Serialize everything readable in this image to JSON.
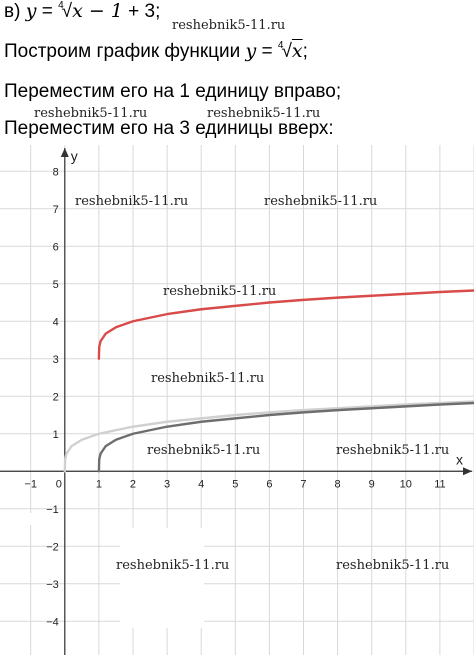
{
  "text": {
    "line1_prefix": "в) ",
    "line1_y": "y",
    "line1_eq": " = ",
    "line1_root_index": "4",
    "line1_radical": "√",
    "line1_radicand": "x − 1",
    "line1_suffix": " + 3;",
    "line2_text": "Построим график функции ",
    "line2_y": "y",
    "line2_eq": " = ",
    "line2_root_index": "4",
    "line2_radical": "√",
    "line2_radicand": "x",
    "line2_end": ";",
    "line3": "Переместим его на 1 единицу вправо;",
    "line4": "Переместим его на 3 единицы вверх:"
  },
  "watermark": "reshebnik5-11.ru",
  "chart_data": {
    "type": "line",
    "xlabel": "x",
    "ylabel": "y",
    "xlim": [
      -1.9,
      12.0
    ],
    "ylim": [
      -4.9,
      8.7
    ],
    "grid": true,
    "x_ticks": [
      "−1",
      "0",
      "1",
      "2",
      "3",
      "4",
      "5",
      "6",
      "7",
      "8",
      "9",
      "10",
      "11"
    ],
    "y_ticks": [
      "−4",
      "−3",
      "−2",
      "−1",
      "1",
      "2",
      "3",
      "4",
      "5",
      "6",
      "7",
      "8"
    ],
    "series": [
      {
        "color": "#d0d0d0",
        "x": [
          0,
          0.01,
          0.05,
          0.2,
          0.5,
          1,
          2,
          3,
          4,
          5,
          6,
          7,
          8,
          9,
          10,
          11,
          12
        ],
        "y": [
          0,
          0.32,
          0.47,
          0.67,
          0.84,
          1.0,
          1.19,
          1.32,
          1.41,
          1.5,
          1.57,
          1.63,
          1.68,
          1.73,
          1.78,
          1.82,
          1.86
        ]
      },
      {
        "color": "#6e6e6e",
        "x": [
          1,
          1.01,
          1.05,
          1.2,
          1.5,
          2,
          3,
          4,
          5,
          6,
          7,
          8,
          9,
          10,
          11,
          12
        ],
        "y": [
          0,
          0.32,
          0.47,
          0.67,
          0.84,
          1.0,
          1.19,
          1.32,
          1.41,
          1.5,
          1.57,
          1.63,
          1.68,
          1.73,
          1.78,
          1.82
        ]
      },
      {
        "color": "#d94a4a",
        "x": [
          1,
          1.01,
          1.05,
          1.2,
          1.5,
          2,
          3,
          4,
          5,
          6,
          7,
          8,
          9,
          10,
          11,
          12
        ],
        "y": [
          3,
          3.32,
          3.47,
          3.67,
          3.84,
          4.0,
          4.19,
          4.32,
          4.41,
          4.5,
          4.57,
          4.63,
          4.68,
          4.73,
          4.78,
          4.82
        ]
      }
    ]
  }
}
